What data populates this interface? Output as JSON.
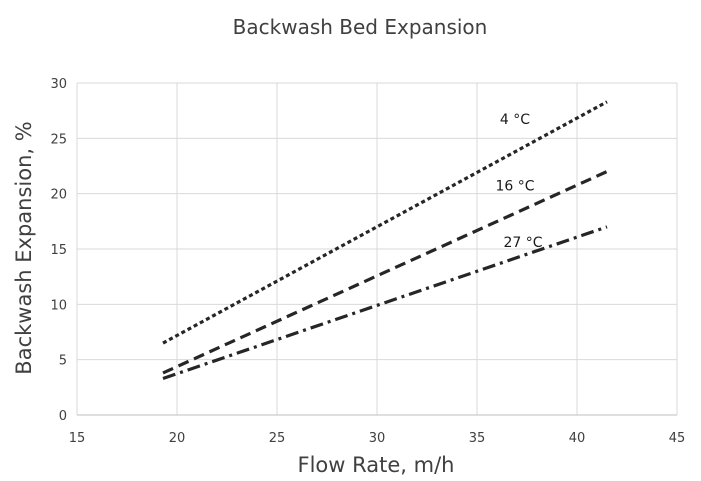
{
  "chart_data": {
    "type": "line",
    "title": "Backwash Bed Expansion",
    "xlabel": "Flow Rate, m/h",
    "ylabel": "Backwash Expansion, %",
    "xlim": [
      15,
      45
    ],
    "ylim": [
      0,
      30
    ],
    "xticks": [
      15,
      20,
      25,
      30,
      35,
      40,
      45
    ],
    "yticks": [
      0,
      5,
      10,
      15,
      20,
      25,
      30
    ],
    "grid": true,
    "legend": "none",
    "series": [
      {
        "name": "4 °C",
        "style": "dotted",
        "x": [
          19.3,
          41.5
        ],
        "y": [
          6.5,
          28.3
        ]
      },
      {
        "name": "16 °C",
        "style": "dashed",
        "x": [
          19.3,
          41.5
        ],
        "y": [
          3.8,
          22.0
        ]
      },
      {
        "name": "27 °C",
        "style": "dash-dot",
        "x": [
          19.3,
          41.5
        ],
        "y": [
          3.3,
          17.0
        ]
      }
    ],
    "annotations": [
      "4 °C",
      "16 °C",
      "27 °C"
    ],
    "colors": {
      "line": "#262626",
      "grid": "#d9d9d9",
      "axis": "#bfbfbf",
      "text": "#404040"
    }
  }
}
